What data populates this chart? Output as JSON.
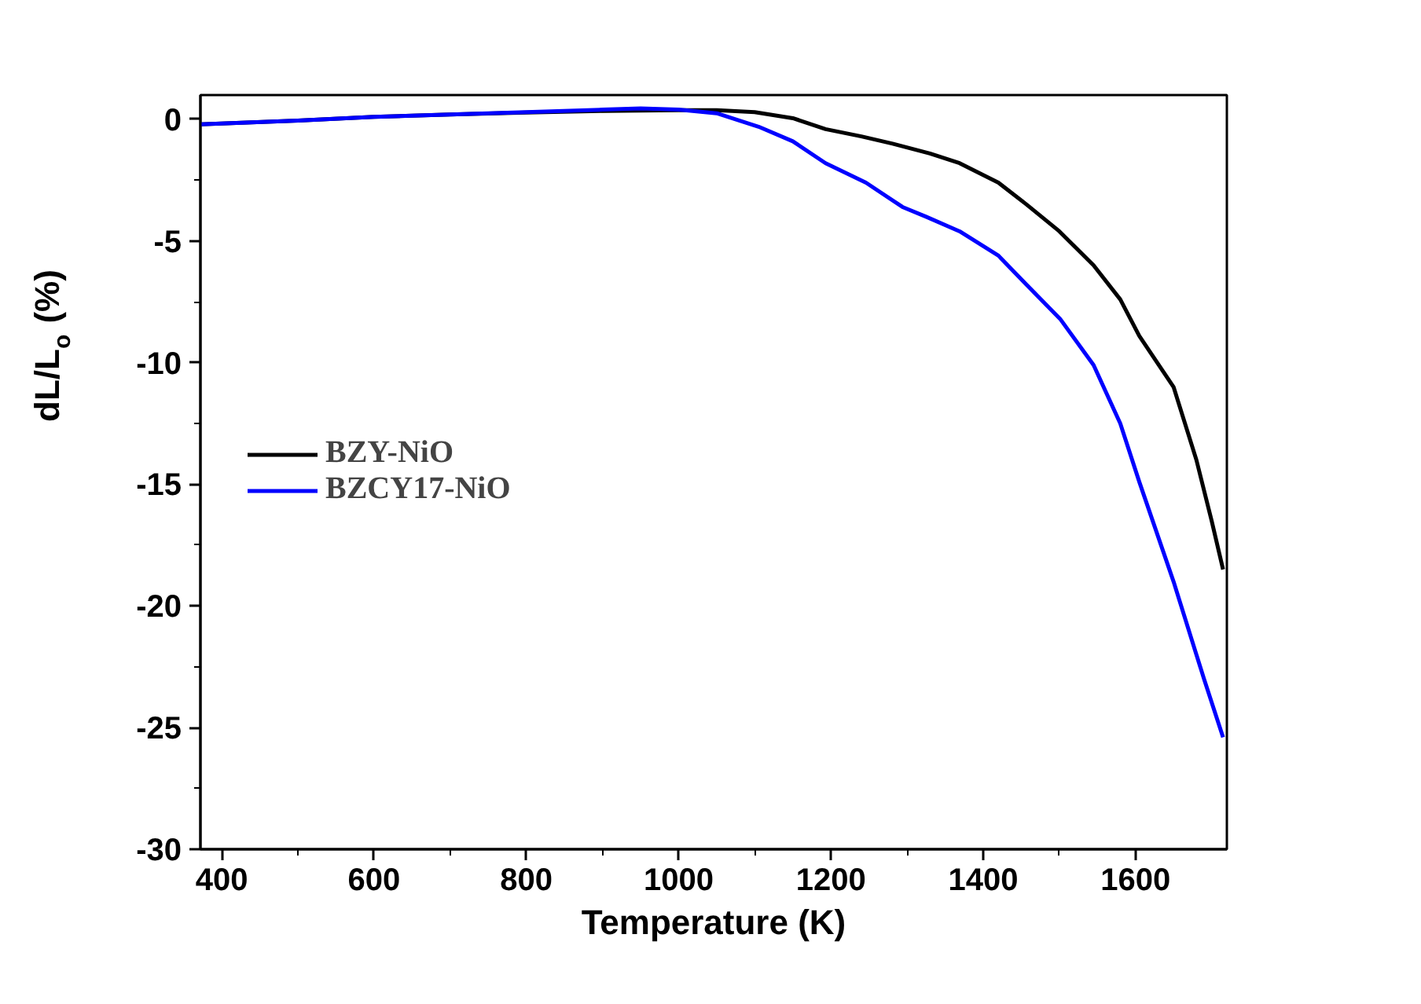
{
  "chart_data": {
    "type": "line",
    "xlabel": "Temperature (K)",
    "ylabel": "dL/L$_{o}$ (%)",
    "xlim": [
      372,
      1720
    ],
    "ylim": [
      -30,
      1
    ],
    "xticks": [
      400,
      600,
      800,
      1000,
      1200,
      1400,
      1600
    ],
    "yticks": [
      0,
      -5,
      -10,
      -15,
      -20,
      -25,
      -30
    ],
    "grid": false,
    "legend": "left",
    "line_style": "solid",
    "series": [
      {
        "name": "BZY-NiO",
        "color": "#000000",
        "x": [
          372,
          500,
          600,
          700,
          800,
          900,
          1000,
          1050,
          1100,
          1150,
          1193,
          1240,
          1281,
          1330,
          1369,
          1420,
          1457,
          1500,
          1545,
          1580,
          1605,
          1650,
          1680,
          1700,
          1715
        ],
        "values": [
          -0.2,
          -0.05,
          0.1,
          0.2,
          0.28,
          0.35,
          0.38,
          0.38,
          0.3,
          0.05,
          -0.4,
          -0.7,
          -1.0,
          -1.4,
          -1.8,
          -2.6,
          -3.5,
          -4.6,
          -6.0,
          -7.4,
          -8.9,
          -11.0,
          -14.0,
          -16.5,
          -18.5
        ]
      },
      {
        "name": "BZCY17-NiO",
        "color": "#0000ff",
        "x": [
          372,
          500,
          600,
          700,
          800,
          900,
          950,
          1000,
          1050,
          1105,
          1150,
          1193,
          1246,
          1294,
          1325,
          1369,
          1420,
          1457,
          1501,
          1545,
          1580,
          1605,
          1650,
          1690,
          1715
        ],
        "values": [
          -0.2,
          -0.05,
          0.1,
          0.2,
          0.3,
          0.4,
          0.45,
          0.4,
          0.25,
          -0.3,
          -0.9,
          -1.8,
          -2.6,
          -3.6,
          -4.0,
          -4.6,
          -5.6,
          -6.8,
          -8.2,
          -10.1,
          -12.5,
          -14.9,
          -19.0,
          -23.0,
          -25.4
        ]
      }
    ]
  }
}
